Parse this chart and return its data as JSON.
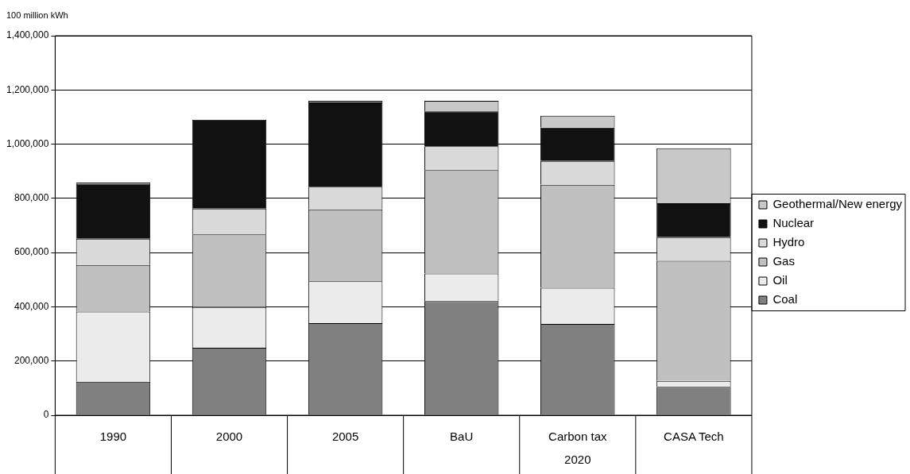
{
  "chart_data": {
    "type": "bar",
    "stacked": true,
    "ylabel": "100 million kWh",
    "categories": [
      "1990",
      "2000",
      "2005",
      "BaU",
      "Carbon tax",
      "CASA Tech"
    ],
    "series": [
      {
        "name": "Coal",
        "color": "#808080",
        "values": [
          124000,
          249000,
          340000,
          421000,
          337000,
          105000
        ]
      },
      {
        "name": "Oil",
        "color": "#ebebeb",
        "values": [
          258000,
          150000,
          154000,
          102000,
          133000,
          22000
        ]
      },
      {
        "name": "Gas",
        "color": "#c0c0c0",
        "values": [
          172000,
          268000,
          265000,
          381000,
          380000,
          443000
        ]
      },
      {
        "name": "Hydro",
        "color": "#dadada",
        "values": [
          97000,
          95000,
          84000,
          88000,
          88000,
          87000
        ]
      },
      {
        "name": "Nuclear",
        "color": "#111111",
        "values": [
          202000,
          328000,
          311000,
          129000,
          123000,
          125000
        ]
      },
      {
        "name": "Geothermal/New energy",
        "color": "#c8c8c8",
        "values": [
          5000,
          0,
          6000,
          39000,
          44000,
          203000
        ]
      }
    ],
    "ylim": [
      0,
      1400000
    ],
    "yticks": [
      0,
      {
        "value": 200000,
        "label": "200,000"
      },
      {
        "value": 400000,
        "label": "400,000"
      },
      {
        "value": 600000,
        "label": "600,000"
      },
      {
        "value": 800000,
        "label": "800,000"
      },
      {
        "value": 1000000,
        "label": "1,000,000"
      },
      {
        "value": 1200000,
        "label": "1,200,000"
      },
      {
        "value": 1400000,
        "label": "1,400,000"
      }
    ],
    "grid": "y",
    "legend": "right",
    "annotations": [
      "2020"
    ]
  }
}
